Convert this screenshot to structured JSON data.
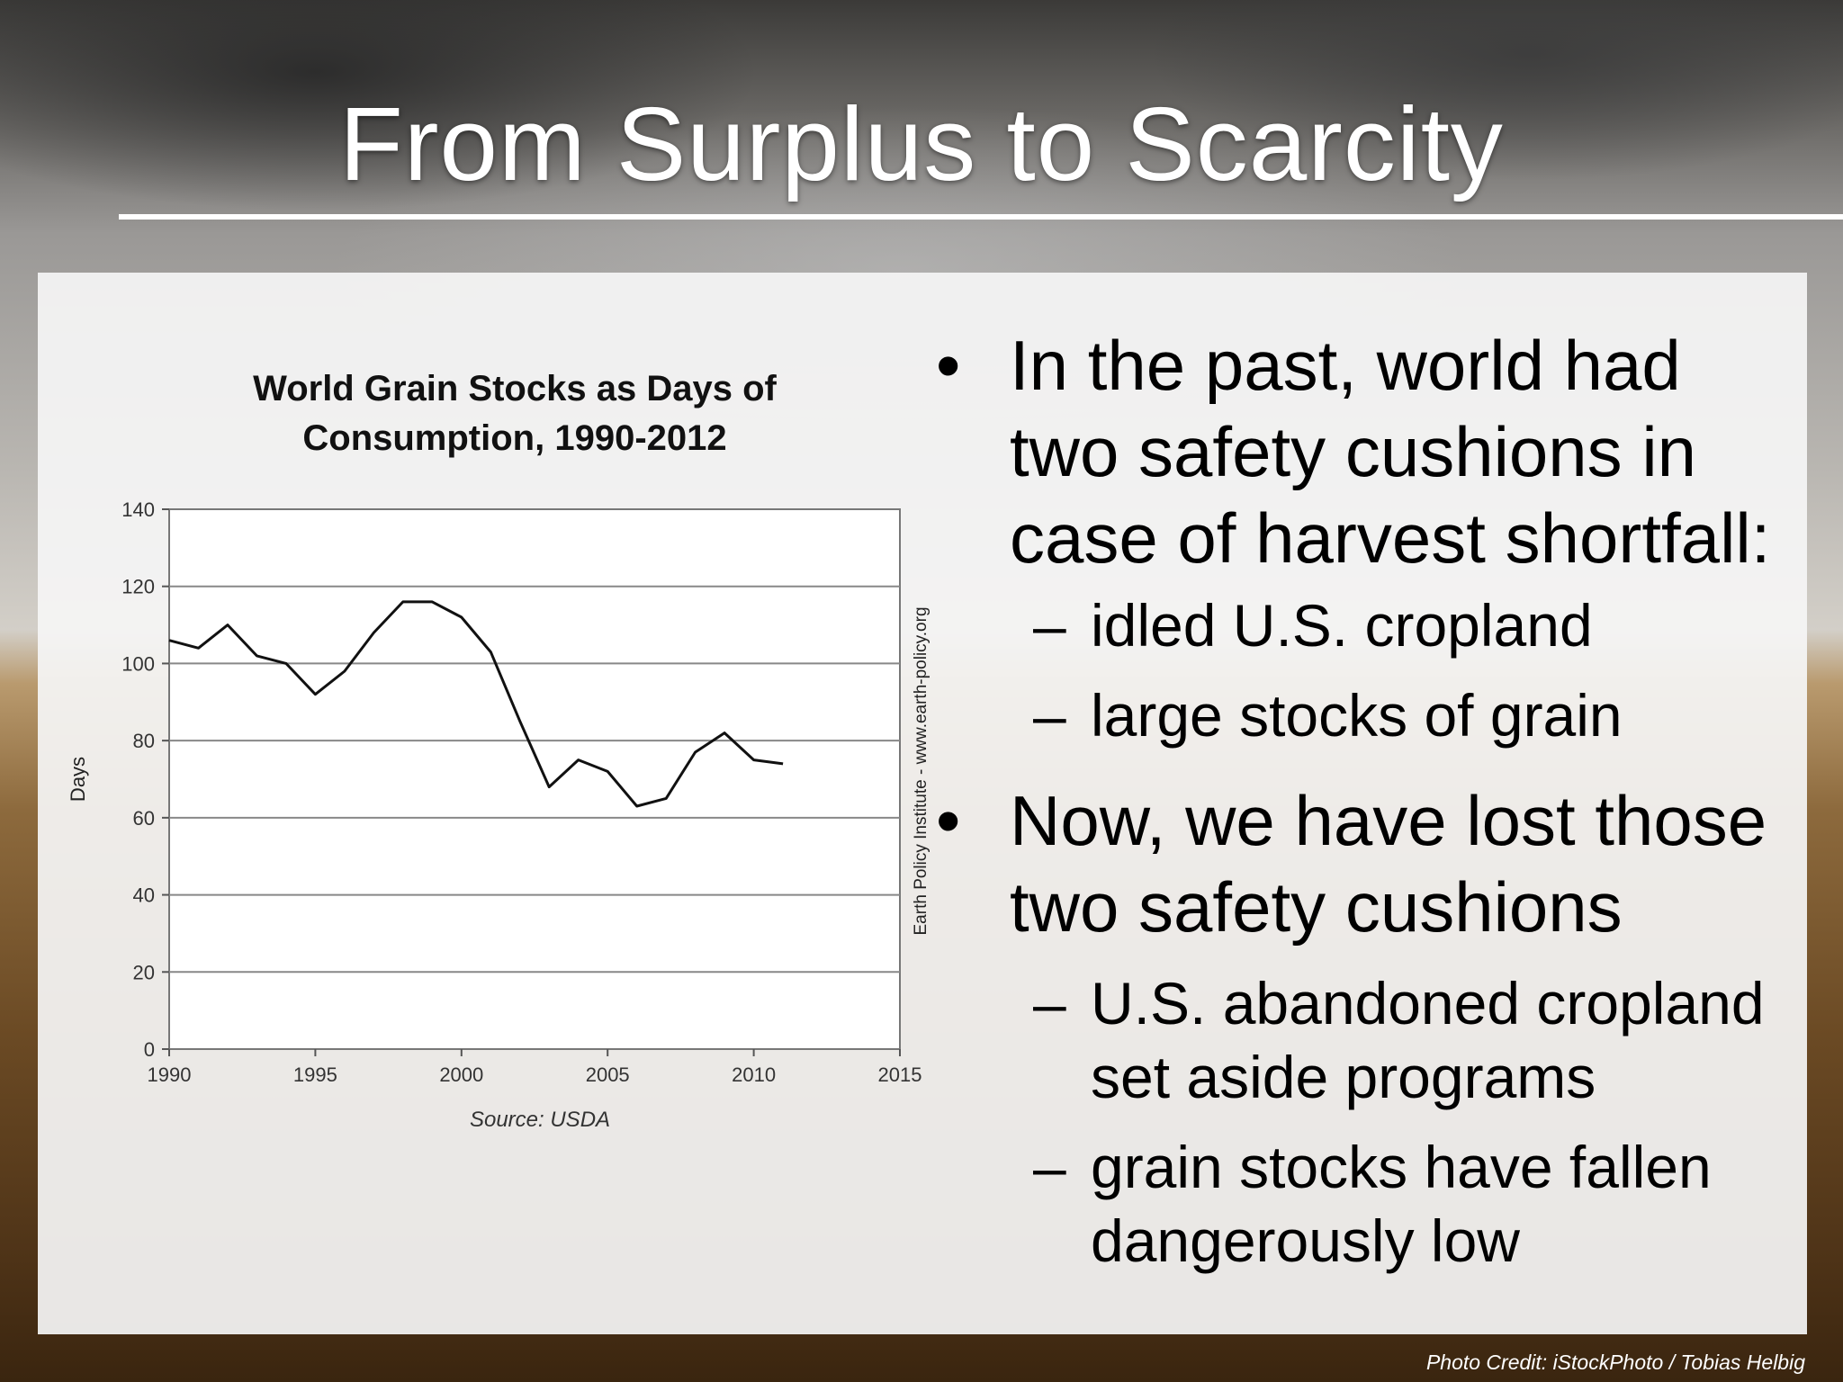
{
  "slide": {
    "title": "From Surplus to Scarcity",
    "photo_credit": "Photo Credit: iStockPhoto / Tobias Helbig"
  },
  "bullets": [
    {
      "text": "In the past, world had two safety cushions in case of harvest shortfall:",
      "sub": [
        "idled U.S. cropland",
        "large stocks of grain"
      ]
    },
    {
      "text": "Now, we have lost those two safety cushions",
      "sub": [
        "U.S. abandoned cropland set aside programs",
        "grain stocks have fallen dangerously low"
      ]
    }
  ],
  "marks": {
    "bullet": "•",
    "dash": "–"
  },
  "chart_data": {
    "type": "line",
    "title_line1": "World Grain Stocks as Days of",
    "title_line2": "Consumption, 1990-2012",
    "xlabel": "",
    "ylabel": "Days",
    "source": "Source: USDA",
    "side_label": "Earth Policy Institute - www.earth-policy.org",
    "xlim": [
      1990,
      2015
    ],
    "ylim": [
      0,
      140
    ],
    "x_ticks": [
      1990,
      1995,
      2000,
      2005,
      2010,
      2015
    ],
    "y_ticks": [
      0,
      20,
      40,
      60,
      80,
      100,
      120,
      140
    ],
    "grid": true,
    "series": [
      {
        "x": [
          1990,
          1991,
          1992,
          1993,
          1994,
          1995,
          1996,
          1997,
          1998,
          1999,
          2000,
          2001,
          2002,
          2003,
          2004,
          2005,
          2006,
          2007,
          2008,
          2009,
          2010,
          2011
        ],
        "values": [
          106,
          104,
          110,
          102,
          100,
          92,
          98,
          108,
          116,
          116,
          112,
          103,
          85,
          68,
          75,
          72,
          63,
          65,
          77,
          82,
          75,
          74
        ]
      }
    ]
  }
}
